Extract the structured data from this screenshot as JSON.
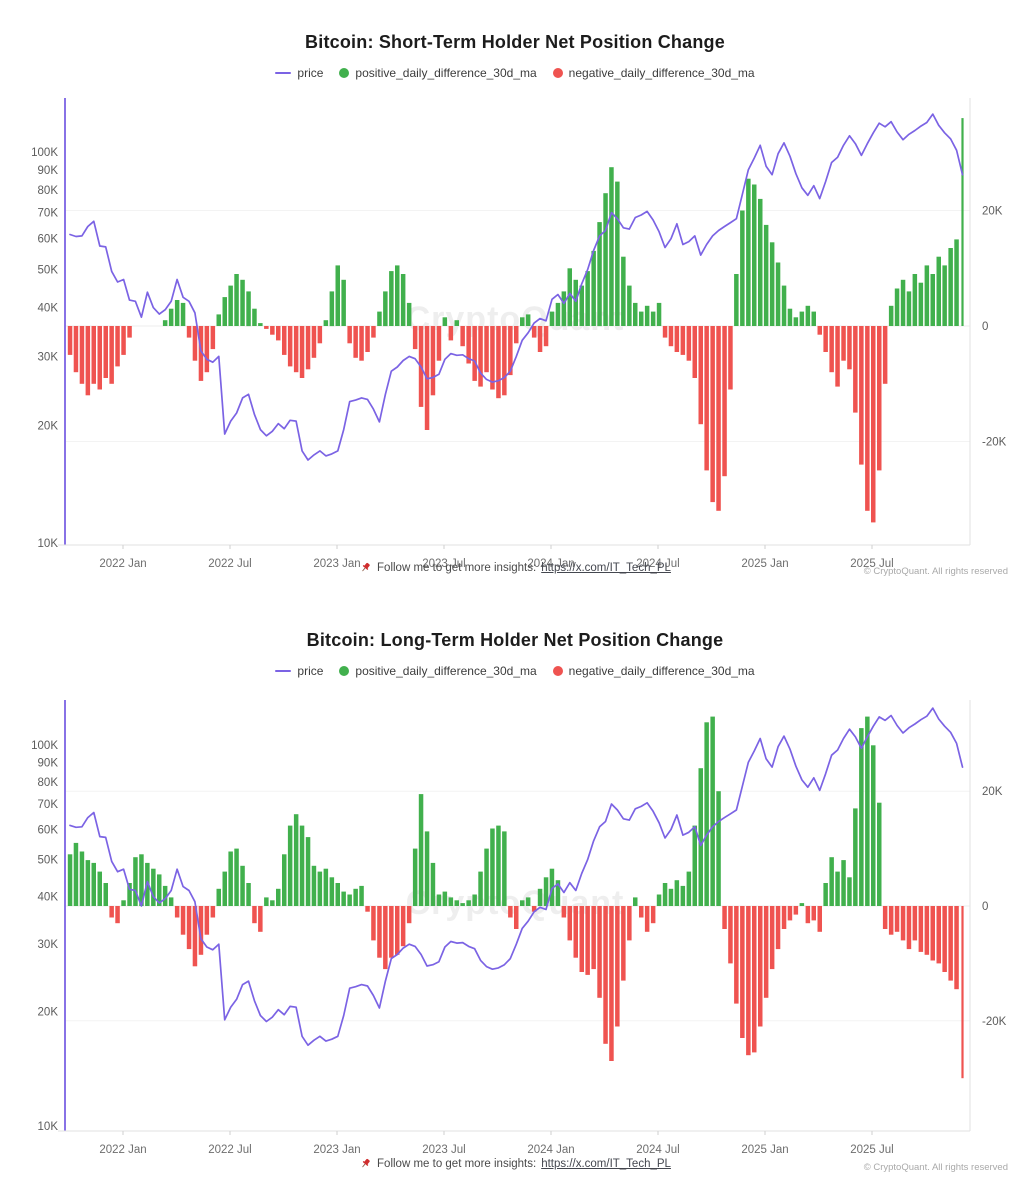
{
  "watermark": "CryptoQuant",
  "footer": {
    "pin_icon": "pushpin-icon",
    "text": "Follow me to get more insights:",
    "link_text": "https://x.com/IT_Tech_PL",
    "copyright": "© CryptoQuant. All rights reserved"
  },
  "price_usd_k": [
    61.5,
    60.8,
    61,
    64.5,
    66.5,
    57.5,
    57.2,
    49.5,
    46.5,
    47.2,
    41.8,
    41.5,
    37.8,
    43.8,
    40,
    38.5,
    39.5,
    41.5,
    47.2,
    42.5,
    41.5,
    38.8,
    31,
    29.5,
    29,
    30,
    19,
    20.5,
    21.5,
    23.5,
    24,
    21.3,
    19.5,
    18.8,
    19.3,
    20.2,
    19.6,
    20.6,
    20.5,
    17.2,
    16.3,
    16.8,
    17.2,
    16.7,
    16.9,
    17.2,
    19.5,
    23,
    23.2,
    23.5,
    23.3,
    22,
    20.4,
    24,
    27.5,
    28.2,
    29.3,
    30,
    29.6,
    28.2,
    26.3,
    26.5,
    27,
    29.5,
    30.5,
    30.2,
    30.3,
    29.6,
    29.2,
    27.2,
    26.2,
    25.8,
    26,
    26.5,
    27.5,
    30,
    33,
    34.5,
    36.5,
    37.5,
    37,
    42,
    43.2,
    41,
    43.5,
    41.5,
    46,
    50,
    56,
    61,
    63,
    70,
    67.5,
    64,
    63.5,
    68,
    69,
    70.5,
    67,
    62.5,
    57,
    60,
    65.5,
    58,
    59,
    61,
    54.5,
    58,
    61,
    63,
    64.5,
    66,
    67.5,
    78,
    90,
    96.5,
    104,
    92,
    87.5,
    99,
    105.5,
    97.5,
    88,
    81,
    77.5,
    82,
    76,
    84,
    94,
    97,
    104,
    110,
    105,
    98,
    105,
    112,
    118.5,
    116,
    119.5,
    112.5,
    107.5,
    111,
    113.5,
    116.5,
    119,
    125,
    117,
    112,
    108,
    101,
    87.5
  ],
  "chart_data": [
    {
      "type": "bar",
      "title": "Bitcoin: Short-Term Holder Net Position Change",
      "legend": [
        {
          "label": "price",
          "color": "#7b63e4",
          "marker": "line"
        },
        {
          "label": "positive_daily_difference_30d_ma",
          "color": "#41b04d",
          "marker": "dot"
        },
        {
          "label": "negative_daily_difference_30d_ma",
          "color": "#ef5350",
          "marker": "dot"
        }
      ],
      "x_tick_labels": [
        "2022 Jan",
        "2022 Jul",
        "2023 Jan",
        "2023 Jul",
        "2024 Jan",
        "2024 Jul",
        "2025 Jan",
        "2025 Jul"
      ],
      "left_axis": {
        "scale": "log",
        "ticks": [
          "100K",
          "90K",
          "80K",
          "70K",
          "60K",
          "50K",
          "40K",
          "30K",
          "20K",
          "10K"
        ],
        "tick_values_k": [
          100,
          90,
          80,
          70,
          60,
          50,
          40,
          30,
          20,
          10
        ],
        "range_k": [
          10,
          137
        ]
      },
      "right_axis": {
        "scale": "linear",
        "ticks": [
          "20K",
          "0",
          "-20K"
        ],
        "tick_values_k": [
          20,
          0,
          -20
        ],
        "range_k": [
          -38,
          39.5
        ]
      },
      "bars_values_k": [
        -5,
        -8,
        -10,
        -12,
        -10,
        -11,
        -9,
        -10,
        -7,
        -5,
        -2,
        0,
        0,
        0,
        0,
        0,
        1,
        3,
        4.5,
        4,
        -2,
        -6,
        -9.5,
        -8,
        -4,
        2,
        5,
        7,
        9,
        8,
        6,
        3,
        0.5,
        -0.5,
        -1.5,
        -2.5,
        -5,
        -7,
        -8,
        -9,
        -7.5,
        -5.5,
        -3,
        1,
        6,
        10.5,
        8,
        -3,
        -5.5,
        -6,
        -4.5,
        -2,
        2.5,
        6,
        9.5,
        10.5,
        9,
        4,
        -4,
        -14,
        -18,
        -12,
        -6,
        1.5,
        -2.5,
        1,
        -3.5,
        -6.5,
        -9.5,
        -10.5,
        -8,
        -11,
        -12.5,
        -12,
        -8.5,
        -3,
        1.5,
        2,
        -2,
        -4.5,
        -3.5,
        2.5,
        4,
        6,
        10,
        8,
        7,
        9.5,
        13,
        18,
        23,
        27.5,
        25,
        12,
        7,
        4,
        2.5,
        3.5,
        2.5,
        4,
        -2,
        -3.5,
        -4.5,
        -5,
        -6,
        -9,
        -17,
        -25,
        -30.5,
        -32,
        -26,
        -11,
        9,
        20,
        25.5,
        24.5,
        22,
        17.5,
        14.5,
        11,
        7,
        3,
        1.5,
        2.5,
        3.5,
        2.5,
        -1.5,
        -4.5,
        -8,
        -10.5,
        -6,
        -7.5,
        -15,
        -24,
        -32,
        -34,
        -25,
        -10,
        3.5,
        6.5,
        8,
        6,
        9,
        7.5,
        10.5,
        9,
        12,
        10.5,
        13.5,
        15,
        36
      ],
      "price_series_ref": "price_usd_k"
    },
    {
      "type": "bar",
      "title": "Bitcoin: Long-Term Holder Net Position Change",
      "legend": [
        {
          "label": "price",
          "color": "#7b63e4",
          "marker": "line"
        },
        {
          "label": "positive_daily_difference_30d_ma",
          "color": "#41b04d",
          "marker": "dot"
        },
        {
          "label": "negative_daily_difference_30d_ma",
          "color": "#ef5350",
          "marker": "dot"
        }
      ],
      "x_tick_labels": [
        "2022 Jan",
        "2022 Jul",
        "2023 Jan",
        "2023 Jul",
        "2024 Jan",
        "2024 Jul",
        "2025 Jan",
        "2025 Jul"
      ],
      "left_axis": {
        "scale": "log",
        "ticks": [
          "100K",
          "90K",
          "80K",
          "70K",
          "60K",
          "50K",
          "40K",
          "30K",
          "20K",
          "10K"
        ],
        "tick_values_k": [
          100,
          90,
          80,
          70,
          60,
          50,
          40,
          30,
          20,
          10
        ],
        "range_k": [
          10,
          131
        ]
      },
      "right_axis": {
        "scale": "linear",
        "ticks": [
          "20K",
          "0",
          "-20K"
        ],
        "tick_values_k": [
          20,
          0,
          -20
        ],
        "range_k": [
          -39,
          36
        ]
      },
      "bars_values_k": [
        9,
        11,
        9.5,
        8,
        7.5,
        6,
        4,
        -2,
        -3,
        1,
        4,
        8.5,
        9,
        7.5,
        6.5,
        5.5,
        3.5,
        1.5,
        -2,
        -5,
        -7.5,
        -10.5,
        -8.5,
        -5,
        -2,
        3,
        6,
        9.5,
        10,
        7,
        4,
        -3,
        -4.5,
        1.5,
        1,
        3,
        9,
        14,
        16,
        14,
        12,
        7,
        6,
        6.5,
        5,
        4,
        2.5,
        2,
        3,
        3.5,
        -1,
        -6,
        -9,
        -11,
        -9,
        -8.5,
        -7,
        -3,
        10,
        19.5,
        13,
        7.5,
        2,
        2.5,
        1.5,
        1,
        0.5,
        1,
        2,
        6,
        10,
        13.5,
        14,
        13,
        -2,
        -4,
        1,
        1.5,
        -1,
        3,
        5,
        6.5,
        4.5,
        -2,
        -6,
        -9,
        -11.5,
        -12,
        -11,
        -16,
        -24,
        -27,
        -21,
        -13,
        -6,
        1.5,
        -2,
        -4.5,
        -3,
        2,
        4,
        3,
        4.5,
        3.5,
        6,
        14,
        24,
        32,
        33,
        20,
        -4,
        -10,
        -17,
        -23,
        -26,
        -25.5,
        -21,
        -16,
        -11,
        -7.5,
        -4,
        -2.5,
        -1.5,
        0.5,
        -3,
        -2.5,
        -4.5,
        4,
        8.5,
        6,
        8,
        5,
        17,
        31,
        33,
        28,
        18,
        -4,
        -5,
        -4.5,
        -6,
        -7.5,
        -6,
        -8,
        -8.5,
        -9.5,
        -10,
        -11.5,
        -13,
        -14.5,
        -30
      ],
      "price_series_ref": "price_usd_k"
    }
  ]
}
